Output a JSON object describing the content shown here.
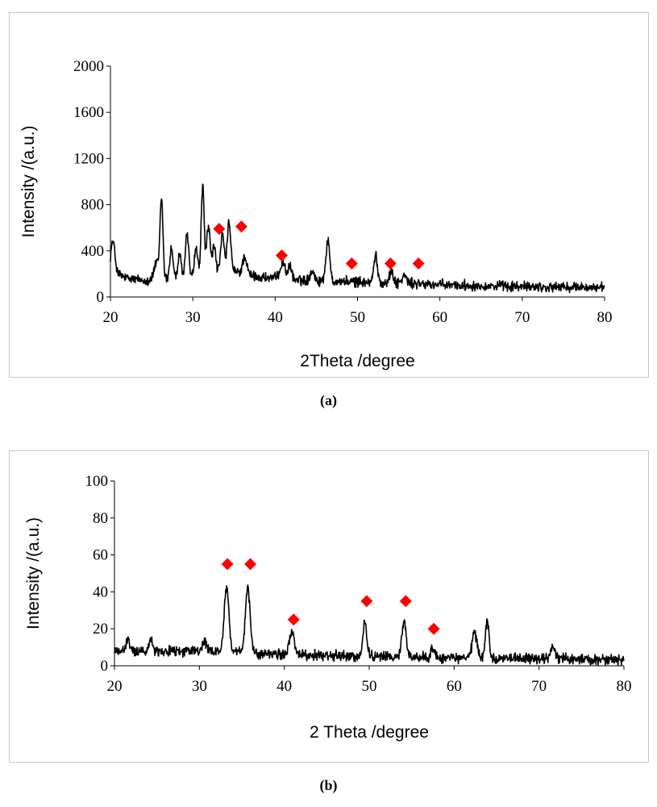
{
  "chart_data": [
    {
      "type": "line",
      "panel_label": "(a)",
      "xlabel": "2Theta /degree",
      "ylabel": "Intensity /(a.u.)",
      "xlim": [
        20,
        80
      ],
      "ylim": [
        0,
        2000
      ],
      "xticks": [
        20,
        30,
        40,
        50,
        60,
        70,
        80
      ],
      "yticks": [
        0,
        400,
        800,
        1200,
        1600,
        2000
      ],
      "series_color": "#000000",
      "marker_color": "#ff0000",
      "baseline": [
        [
          20,
          230
        ],
        [
          22,
          160
        ],
        [
          25,
          140
        ],
        [
          30,
          180
        ],
        [
          35,
          220
        ],
        [
          38,
          170
        ],
        [
          42,
          150
        ],
        [
          45,
          140
        ],
        [
          50,
          130
        ],
        [
          55,
          120
        ],
        [
          60,
          105
        ],
        [
          70,
          90
        ],
        [
          80,
          80
        ]
      ],
      "noise": 55,
      "peaks": [
        {
          "x": 20.3,
          "h": 260,
          "w": 0.25
        },
        {
          "x": 25.6,
          "h": 150,
          "w": 0.3
        },
        {
          "x": 26.2,
          "h": 690,
          "w": 0.18
        },
        {
          "x": 27.4,
          "h": 260,
          "w": 0.2
        },
        {
          "x": 28.4,
          "h": 190,
          "w": 0.2
        },
        {
          "x": 29.3,
          "h": 380,
          "w": 0.2
        },
        {
          "x": 30.4,
          "h": 240,
          "w": 0.2
        },
        {
          "x": 31.2,
          "h": 760,
          "w": 0.18
        },
        {
          "x": 31.9,
          "h": 420,
          "w": 0.22
        },
        {
          "x": 32.6,
          "h": 240,
          "w": 0.2
        },
        {
          "x": 33.6,
          "h": 320,
          "w": 0.22
        },
        {
          "x": 34.4,
          "h": 420,
          "w": 0.22
        },
        {
          "x": 36.3,
          "h": 150,
          "w": 0.25
        },
        {
          "x": 40.9,
          "h": 150,
          "w": 0.3
        },
        {
          "x": 41.8,
          "h": 100,
          "w": 0.25
        },
        {
          "x": 44.5,
          "h": 90,
          "w": 0.25
        },
        {
          "x": 46.4,
          "h": 340,
          "w": 0.25
        },
        {
          "x": 52.2,
          "h": 230,
          "w": 0.22
        },
        {
          "x": 54.1,
          "h": 90,
          "w": 0.25
        },
        {
          "x": 55.7,
          "h": 70,
          "w": 0.25
        }
      ],
      "markers": [
        {
          "x": 33.2,
          "y": 590
        },
        {
          "x": 35.9,
          "y": 610
        },
        {
          "x": 40.8,
          "y": 360
        },
        {
          "x": 49.3,
          "y": 290
        },
        {
          "x": 54.0,
          "y": 290
        },
        {
          "x": 57.4,
          "y": 290
        }
      ]
    },
    {
      "type": "line",
      "panel_label": "(b)",
      "xlabel": "2 Theta /degree",
      "ylabel": "Intensity /(a.u.)",
      "xlim": [
        20,
        80
      ],
      "ylim": [
        0,
        100
      ],
      "xticks": [
        20,
        30,
        40,
        50,
        60,
        70,
        80
      ],
      "yticks": [
        0,
        20,
        40,
        60,
        80,
        100
      ],
      "series_color": "#000000",
      "marker_color": "#ff0000",
      "baseline": [
        [
          20,
          8
        ],
        [
          30,
          8
        ],
        [
          40,
          6
        ],
        [
          50,
          5
        ],
        [
          60,
          4
        ],
        [
          70,
          4
        ],
        [
          80,
          3
        ]
      ],
      "noise": 3.5,
      "peaks": [
        {
          "x": 21.6,
          "h": 6,
          "w": 0.2
        },
        {
          "x": 24.3,
          "h": 8,
          "w": 0.2
        },
        {
          "x": 30.6,
          "h": 6,
          "w": 0.2
        },
        {
          "x": 33.2,
          "h": 35,
          "w": 0.28
        },
        {
          "x": 35.7,
          "h": 35,
          "w": 0.28
        },
        {
          "x": 40.9,
          "h": 12,
          "w": 0.3
        },
        {
          "x": 49.5,
          "h": 20,
          "w": 0.22
        },
        {
          "x": 54.1,
          "h": 20,
          "w": 0.25
        },
        {
          "x": 57.5,
          "h": 5,
          "w": 0.25
        },
        {
          "x": 62.4,
          "h": 14,
          "w": 0.28
        },
        {
          "x": 63.9,
          "h": 20,
          "w": 0.22
        },
        {
          "x": 71.6,
          "h": 7,
          "w": 0.25
        }
      ],
      "markers": [
        {
          "x": 33.3,
          "y": 55
        },
        {
          "x": 36.0,
          "y": 55
        },
        {
          "x": 41.1,
          "y": 25
        },
        {
          "x": 49.7,
          "y": 35
        },
        {
          "x": 54.3,
          "y": 35
        },
        {
          "x": 57.6,
          "y": 20
        }
      ]
    }
  ]
}
